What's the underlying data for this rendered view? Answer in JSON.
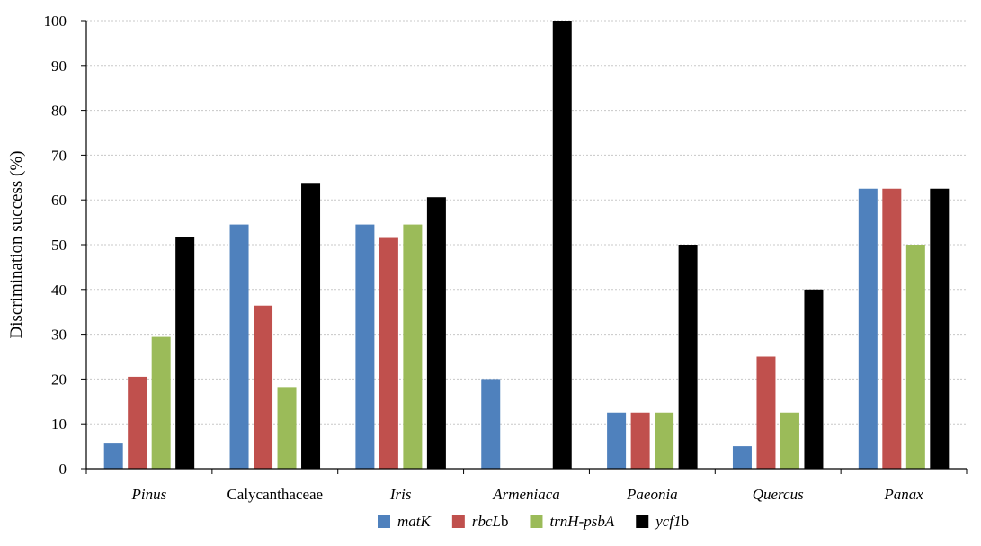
{
  "chart_data": {
    "type": "bar",
    "title": "",
    "xlabel": "",
    "ylabel": "Discrimination success (%)",
    "ylim": [
      0,
      100
    ],
    "yticks": [
      "0",
      "10",
      "20",
      "30",
      "40",
      "50",
      "60",
      "70",
      "80",
      "90",
      "100"
    ],
    "grid": "horizontal dotted",
    "legend_position": "bottom-center",
    "categories": [
      {
        "label": "Pinus",
        "italic": true
      },
      {
        "label": "Calycanthaceae",
        "italic": false
      },
      {
        "label": "Iris",
        "italic": true
      },
      {
        "label": "Armeniaca",
        "italic": true
      },
      {
        "label": "Paeonia",
        "italic": true
      },
      {
        "label": "Quercus",
        "italic": true
      },
      {
        "label": "Panax",
        "italic": true
      }
    ],
    "series": [
      {
        "name": "matK",
        "legend_parts": [
          {
            "text": "matK",
            "italic": true
          }
        ],
        "color": "#4f81bd",
        "values": [
          5.6,
          54.5,
          54.5,
          20,
          12.5,
          5,
          62.5
        ]
      },
      {
        "name": "rbcLb",
        "legend_parts": [
          {
            "text": "rbcL",
            "italic": true
          },
          {
            "text": "b",
            "italic": false
          }
        ],
        "color": "#c0504d",
        "values": [
          20.5,
          36.4,
          51.5,
          0,
          12.5,
          25,
          62.5
        ]
      },
      {
        "name": "trnH-psbA",
        "legend_parts": [
          {
            "text": "trnH-psbA",
            "italic": true
          }
        ],
        "color": "#9bbb59",
        "values": [
          29.4,
          18.2,
          54.5,
          0,
          12.5,
          12.5,
          50
        ]
      },
      {
        "name": "ycf1b",
        "legend_parts": [
          {
            "text": "ycf1",
            "italic": true
          },
          {
            "text": "b",
            "italic": false
          }
        ],
        "color": "#000000",
        "values": [
          51.7,
          63.6,
          60.6,
          100,
          50,
          40,
          62.5
        ]
      }
    ]
  }
}
